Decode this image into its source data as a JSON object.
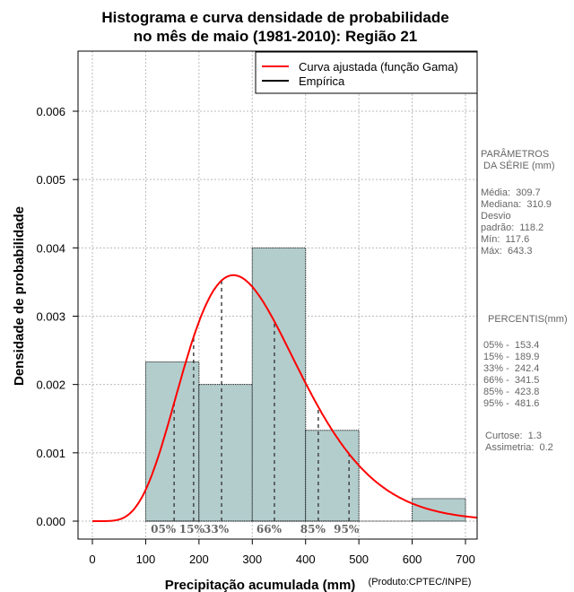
{
  "chart_data": {
    "type": "bar",
    "title_line1": "Histograma e curva densidade de probabilidade",
    "title_line2": "no mês de maio (1981-2010): Região 21",
    "xlabel": "Precipitação acumulada (mm)",
    "ylabel": "Densidade de probabilidade",
    "credit": "(Produto:CPTEC/INPE)",
    "xlim": [
      -25,
      722
    ],
    "ylim": [
      -0.00026,
      0.00688
    ],
    "xticks": [
      0,
      100,
      200,
      300,
      400,
      500,
      600,
      700
    ],
    "yticks": [
      "0.000",
      "0.001",
      "0.002",
      "0.003",
      "0.004",
      "0.005",
      "0.006"
    ],
    "bins": [
      {
        "from": 100,
        "to": 200,
        "density": 0.00233
      },
      {
        "from": 200,
        "to": 300,
        "density": 0.002
      },
      {
        "from": 300,
        "to": 400,
        "density": 0.004
      },
      {
        "from": 400,
        "to": 500,
        "density": 0.00133
      },
      {
        "from": 500,
        "to": 600,
        "density": 0
      },
      {
        "from": 600,
        "to": 700,
        "density": 0.00033
      }
    ],
    "gamma": {
      "mean": 309.7,
      "sd": 118.2
    },
    "percentile_marks": [
      {
        "label": "05%",
        "x": 153.4
      },
      {
        "label": "15%",
        "x": 189.9
      },
      {
        "label": "33%",
        "x": 242.4
      },
      {
        "label": "66%",
        "x": 341.5
      },
      {
        "label": "85%",
        "x": 423.8
      },
      {
        "label": "95%",
        "x": 481.6
      }
    ],
    "legend": [
      {
        "name": "Curva ajustada (função Gama)",
        "color": "#ff0000"
      },
      {
        "name": "Empírica",
        "color": "#000000"
      }
    ],
    "legend_position": "top-right",
    "bar_color": "#b3cdcd"
  },
  "side": {
    "params_title": "PARÂMETROS\n DA SÉRIE (mm)",
    "params": "Média:  309.7\nMediana:  310.9\nDesvio\npadrão:  118.2\nMín:  117.6\nMáx:  643.3",
    "perc_title": "PERCENTIS(mm)",
    "percs": "05% -  153.4\n15% -  189.9\n33% -  242.4\n66% -  341.5\n85% -  423.8\n95% -  481.6",
    "extra": "Curtose:  1.3\nAssimetria:  0.2"
  }
}
